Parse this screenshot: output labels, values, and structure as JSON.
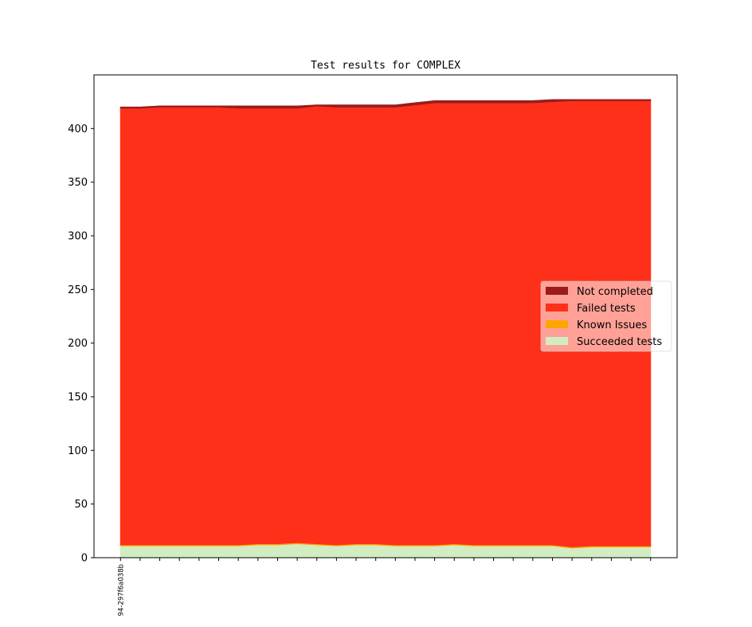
{
  "chart_data": {
    "type": "stacked_area",
    "title": "Test results for COMPLEX",
    "categories": [
      "94-297f6a038b",
      null,
      null,
      null,
      null,
      null,
      null,
      null,
      null,
      null,
      null,
      null,
      null,
      null,
      null,
      null,
      null,
      null,
      null,
      null,
      null,
      null,
      null,
      null,
      null,
      null,
      null,
      null
    ],
    "series": [
      {
        "name": "Succeeded tests",
        "color": "#d1edc1",
        "values": [
          11,
          11,
          11,
          11,
          11,
          11,
          11,
          12,
          12,
          13,
          12,
          11,
          12,
          12,
          11,
          11,
          11,
          12,
          11,
          11,
          11,
          11,
          11,
          9,
          10,
          10,
          10,
          10
        ]
      },
      {
        "name": "Known Issues",
        "color": "#ffa500",
        "values": [
          1,
          1,
          1,
          1,
          1,
          1,
          1,
          1,
          1,
          1,
          1,
          1,
          1,
          1,
          1,
          1,
          1,
          1,
          1,
          1,
          1,
          1,
          1,
          1,
          1,
          1,
          1,
          1
        ]
      },
      {
        "name": "Failed tests",
        "color": "#ff3019",
        "values": [
          407,
          407,
          408,
          408,
          408,
          408,
          407,
          406,
          406,
          405,
          408,
          408,
          407,
          407,
          408,
          410,
          412,
          411,
          412,
          412,
          412,
          412,
          413,
          416,
          415,
          415,
          415,
          415
        ]
      },
      {
        "name": "Not completed",
        "color": "#9b1c1c",
        "values": [
          1,
          1,
          1,
          1,
          1,
          1,
          2,
          2,
          2,
          2,
          1,
          2,
          2,
          2,
          2,
          2,
          2,
          2,
          2,
          2,
          2,
          2,
          2,
          1,
          1,
          1,
          1,
          1
        ]
      }
    ],
    "ylim": [
      0,
      450
    ],
    "yticks": [
      0,
      50,
      100,
      150,
      200,
      250,
      300,
      350,
      400
    ],
    "legend": "center right"
  }
}
